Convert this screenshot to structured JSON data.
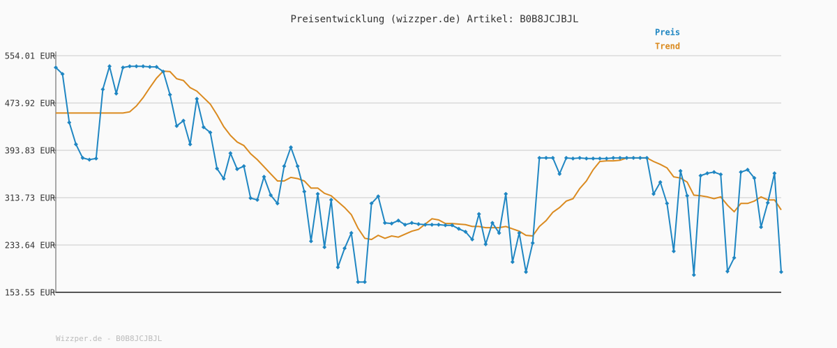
{
  "chart_data": {
    "type": "line",
    "title": "Preisentwicklung (wizzper.de) Artikel: B0B8JCJBJL",
    "footer": "Wizzper.de - B0B8JCJBJL",
    "ylim": [
      153.55,
      554.01
    ],
    "yticks": [
      {
        "value": 153.55,
        "label": "153.55 EUR"
      },
      {
        "value": 233.64,
        "label": "233.64 EUR"
      },
      {
        "value": 313.73,
        "label": "313.73 EUR"
      },
      {
        "value": 393.83,
        "label": "393.83 EUR"
      },
      {
        "value": 473.92,
        "label": "473.92 EUR"
      },
      {
        "value": 554.01,
        "label": "554.01 EUR"
      }
    ],
    "grid": true,
    "legend": "top-right",
    "series": [
      {
        "name": "Preis",
        "color": "#1f86c2",
        "markers": true,
        "values": [
          534,
          523,
          441,
          404,
          381,
          378,
          380,
          497,
          536,
          490,
          534,
          536,
          536,
          536,
          535,
          535,
          527,
          488,
          435,
          444,
          404,
          481,
          433,
          424,
          363,
          346,
          389,
          362,
          367,
          313,
          310,
          349,
          318,
          304,
          367,
          399,
          367,
          324,
          240,
          320,
          230,
          310,
          196,
          228,
          254,
          171,
          171,
          304,
          316,
          271,
          270,
          275,
          268,
          271,
          269,
          268,
          268,
          268,
          267,
          267,
          261,
          256,
          243,
          286,
          235,
          271,
          254,
          320,
          205,
          254,
          188,
          237,
          381,
          381,
          381,
          354,
          381,
          380,
          381,
          380,
          380,
          380,
          380,
          381,
          381,
          381,
          381,
          381,
          381,
          320,
          340,
          304,
          223,
          359,
          317,
          183,
          351,
          355,
          357,
          353,
          189,
          212,
          357,
          361,
          347,
          264,
          305,
          355,
          188
        ]
      },
      {
        "name": "Trend",
        "color": "#da8a1f",
        "markers": false,
        "values": [
          457,
          457,
          457,
          457,
          457,
          457,
          457,
          457,
          457,
          457,
          457,
          459,
          469,
          483,
          500,
          516,
          528,
          527,
          515,
          512,
          500,
          494,
          483,
          472,
          454,
          434,
          419,
          408,
          402,
          388,
          378,
          366,
          354,
          342,
          342,
          348,
          346,
          342,
          330,
          330,
          321,
          317,
          307,
          297,
          285,
          262,
          245,
          243,
          250,
          245,
          249,
          247,
          252,
          257,
          260,
          269,
          278,
          276,
          270,
          270,
          269,
          268,
          265,
          265,
          263,
          263,
          263,
          265,
          261,
          257,
          250,
          249,
          265,
          275,
          289,
          297,
          308,
          312,
          329,
          342,
          361,
          375,
          376,
          376,
          377,
          381,
          381,
          381,
          381,
          375,
          370,
          364,
          349,
          347,
          340,
          318,
          317,
          315,
          312,
          315,
          301,
          290,
          304,
          304,
          308,
          315,
          310,
          310,
          293
        ]
      }
    ]
  }
}
